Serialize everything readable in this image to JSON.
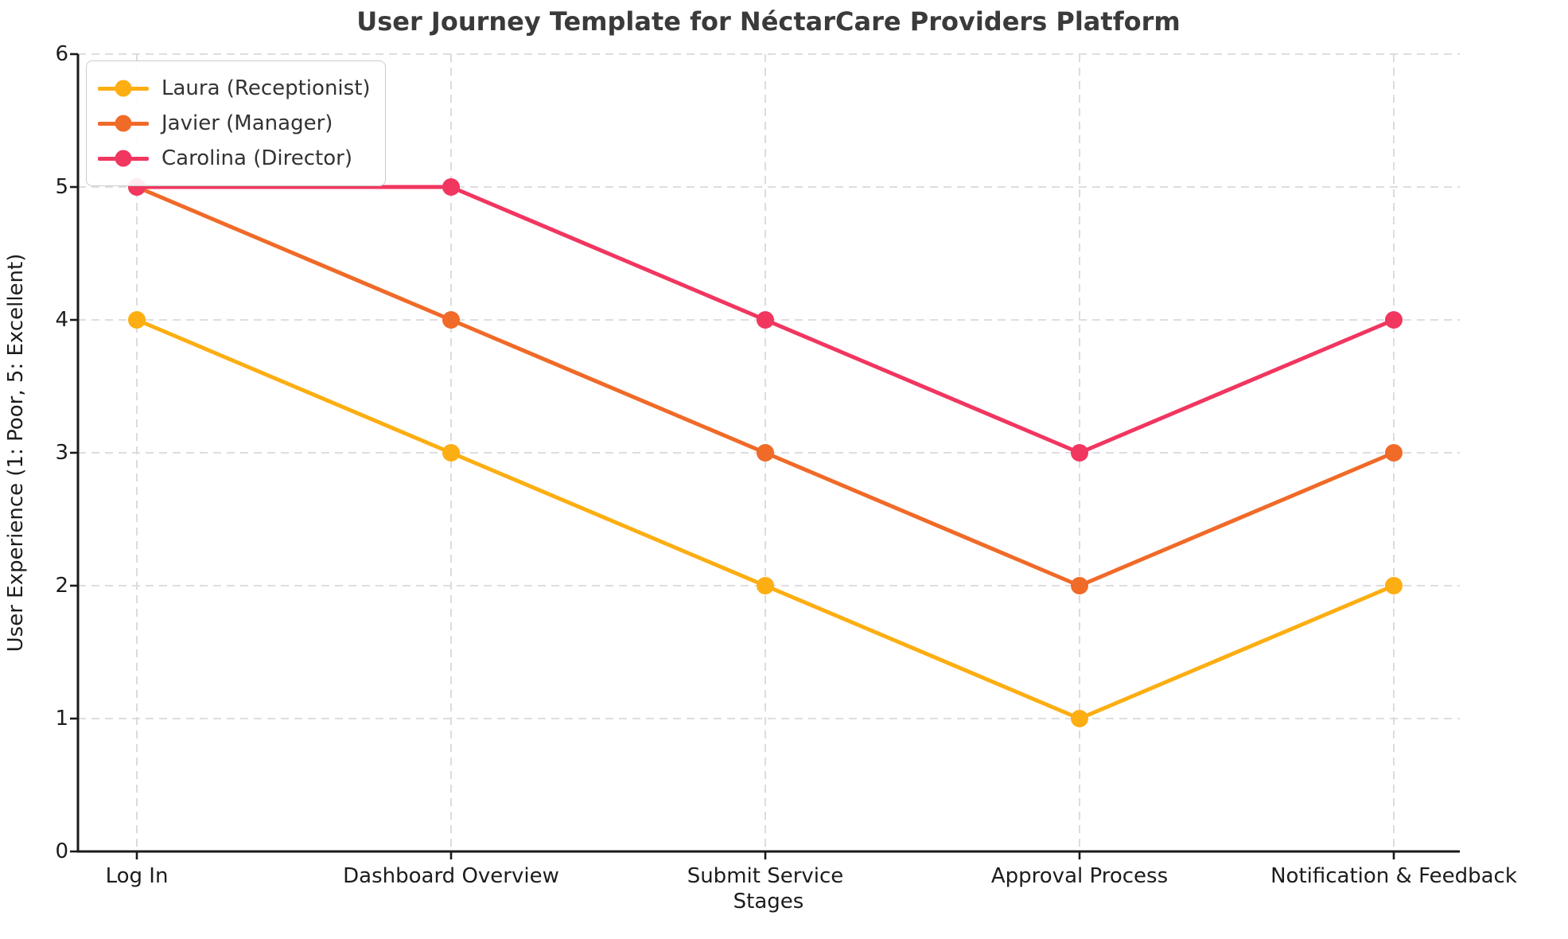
{
  "chart_data": {
    "type": "line",
    "title": "User Journey Template for NéctarCare Providers Platform",
    "xlabel": "Stages",
    "ylabel": "User Experience (1: Poor, 5: Excellent)",
    "categories": [
      "Log In",
      "Dashboard Overview",
      "Submit Service",
      "Approval Process",
      "Notification & Feedback"
    ],
    "series": [
      {
        "name": "Laura (Receptionist)",
        "slug": "laura",
        "values": [
          4,
          3,
          2,
          1,
          2
        ],
        "color": "#FCAE12"
      },
      {
        "name": "Javier (Manager)",
        "slug": "javier",
        "values": [
          5,
          4,
          3,
          2,
          3
        ],
        "color": "#F06A28"
      },
      {
        "name": "Carolina (Director)",
        "slug": "carolina",
        "values": [
          5,
          5,
          4,
          3,
          4
        ],
        "color": "#F13660"
      }
    ],
    "ylim": [
      0,
      6
    ],
    "yticks": [
      0,
      1,
      2,
      3,
      4,
      5,
      6
    ],
    "grid": true,
    "legend_position": "upper-left"
  },
  "style": {
    "background": "#ffffff",
    "grid_color": "#d9d9d9",
    "spine_color": "#1a1a1a",
    "tick_color": "#1a1a1a",
    "title_color": "#3a3a3a",
    "text_color": "#1c1c1c",
    "legend_border": "#cccccc",
    "legend_text": "#333333"
  }
}
